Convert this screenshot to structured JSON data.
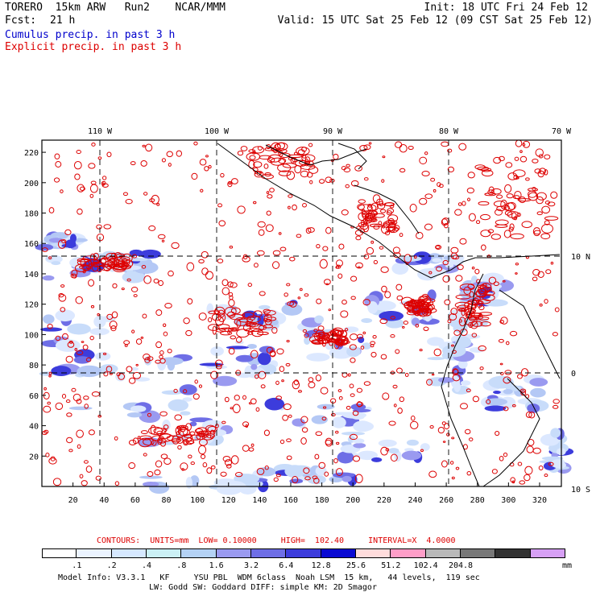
{
  "header": {
    "model_line": "TORERO  15km ARW   Run2    NCAR/MMM",
    "fcst_label": "Fcst:",
    "fcst_value": "21 h",
    "init": "Init: 18 UTC Fri 24 Feb 12",
    "valid": "Valid: 15 UTC Sat 25 Feb 12 (09 CST Sat 25 Feb 12)",
    "field1": "Cumulus precip. in past 3 h",
    "field2": "Explicit precip. in past 3 h",
    "field1_color": "#0000cc",
    "field2_color": "#dd0000"
  },
  "axes": {
    "top_lon_labels": [
      "110 W",
      "100 W",
      "90 W",
      "80 W",
      "70 W"
    ],
    "right_lat_labels": [
      "10 N",
      "0",
      "10 S"
    ],
    "left_ticks": [
      "20",
      "40",
      "60",
      "80",
      "100",
      "120",
      "140",
      "160",
      "180",
      "200",
      "220"
    ],
    "bottom_ticks": [
      "20",
      "40",
      "60",
      "80",
      "100",
      "120",
      "140",
      "160",
      "180",
      "200",
      "220",
      "240",
      "260",
      "280",
      "300",
      "320"
    ]
  },
  "contours": {
    "text": "CONTOURS:  UNITS=mm  LOW= 0.10000     HIGH=  102.40     INTERVAL=X  4.0000",
    "color": "#dd0000"
  },
  "colorbar": {
    "colors": [
      "#ffffff",
      "#ebf3ff",
      "#d6e8ff",
      "#cbf0f5",
      "#b4d2f5",
      "#9a9af0",
      "#6e6ee6",
      "#3c3cdc",
      "#0a0ad2",
      "#ffdcdc",
      "#ff9ec8",
      "#b9b9b9",
      "#787878",
      "#323232",
      "#d7a0f5"
    ],
    "labels": [
      ".1",
      ".2",
      ".4",
      ".8",
      "1.6",
      "3.2",
      "6.4",
      "12.8",
      "25.6",
      "51.2",
      "102.4",
      "204.8"
    ],
    "units": "mm"
  },
  "footer": {
    "line1": "Model Info: V3.3.1   KF     YSU PBL  WDM 6class  Noah LSM  15 km,   44 levels,  119 sec",
    "line2": "LW: Godd SW: Goddard DIFF: simple KM: 2D Smagor"
  }
}
